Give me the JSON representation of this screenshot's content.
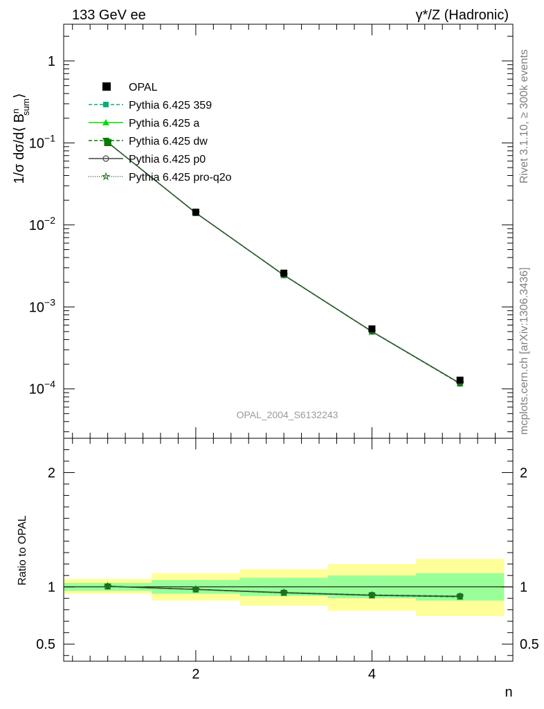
{
  "header": {
    "left": "133 GeV ee",
    "right": "γ*/Z (Hadronic)"
  },
  "side_labels": {
    "rivet": "Rivet 3.1.10, ≥ 300k events",
    "mcplots": "mcplots.cern.ch [arXiv:1306.3436]"
  },
  "watermark": "OPAL_2004_S6132243",
  "colors": {
    "data": "#000000",
    "yellow_band": "#ffff99",
    "green_band": "#99ff99",
    "p359": "#00b07a",
    "pa": "#00dd00",
    "pdw": "#008000",
    "pp0": "#444444",
    "pq2o": "#207020"
  },
  "chart_data": [
    {
      "type": "line",
      "panel": "main",
      "ylabel_main": "1/σ dσ/d⟨ B",
      "ylabel_sup": "n",
      "ylabel_sub": "sum",
      "ylabel_close": "⟩",
      "xlim": [
        0.5,
        5.6
      ],
      "ylim": [
        2.5e-05,
        2.8
      ],
      "yscale": "log",
      "y_ticks": [
        {
          "value": 1,
          "base": "1",
          "exp": ""
        },
        {
          "value": 0.1,
          "base": "10",
          "exp": "−1"
        },
        {
          "value": 0.01,
          "base": "10",
          "exp": "−2"
        },
        {
          "value": 0.001,
          "base": "10",
          "exp": "−3"
        },
        {
          "value": 0.0001,
          "base": "10",
          "exp": "−4"
        }
      ],
      "x": [
        1,
        2,
        3,
        4,
        5
      ],
      "data": {
        "name": "OPAL",
        "values": [
          0.101,
          0.0143,
          0.00258,
          0.00054,
          0.000128
        ]
      },
      "series": [
        {
          "name": "Pythia 6.425 359",
          "values": [
            0.1015,
            0.014,
            0.00245,
            0.000502,
            0.000117
          ],
          "color": "#00b07a",
          "marker": "square",
          "dash": "5,3"
        },
        {
          "name": "Pythia 6.425 a",
          "values": [
            0.1015,
            0.014,
            0.00245,
            0.0005,
            0.000117
          ],
          "color": "#00dd00",
          "marker": "triangle-up",
          "dash": ""
        },
        {
          "name": "Pythia 6.425 dw",
          "values": [
            0.1015,
            0.014,
            0.00244,
            0.0005,
            0.000116
          ],
          "color": "#008000",
          "marker": "triangle-down",
          "dash": "5,3"
        },
        {
          "name": "Pythia 6.425 p0",
          "values": [
            0.1015,
            0.014,
            0.00245,
            0.000501,
            0.000117
          ],
          "color": "#444444",
          "marker": "circle",
          "dash": ""
        },
        {
          "name": "Pythia 6.425 pro-q2o",
          "values": [
            0.1015,
            0.014,
            0.00245,
            0.0005,
            0.000117
          ],
          "color": "#207020",
          "marker": "star",
          "dash": "1,2"
        }
      ],
      "legend_position": "top-left"
    },
    {
      "type": "line",
      "panel": "ratio",
      "ylabel": "Ratio to OPAL",
      "xlabel": "n",
      "xlim": [
        0.5,
        5.6
      ],
      "ylim": [
        0.35,
        2.3
      ],
      "x_ticks": [
        2,
        4
      ],
      "y_ticks": [
        {
          "value": 2,
          "label": "2"
        },
        {
          "value": 1,
          "label": "1"
        },
        {
          "value": 0.5,
          "label": "0.5"
        }
      ],
      "bins": [
        {
          "xlo": 0.5,
          "xhi": 1.5,
          "yellow": [
            0.94,
            1.07
          ],
          "green": [
            0.965,
            1.035
          ]
        },
        {
          "xlo": 1.5,
          "xhi": 2.5,
          "yellow": [
            0.88,
            1.12
          ],
          "green": [
            0.94,
            1.06
          ]
        },
        {
          "xlo": 2.5,
          "xhi": 3.5,
          "yellow": [
            0.835,
            1.155
          ],
          "green": [
            0.92,
            1.08
          ]
        },
        {
          "xlo": 3.5,
          "xhi": 4.5,
          "yellow": [
            0.79,
            1.2
          ],
          "green": [
            0.9,
            1.1
          ]
        },
        {
          "xlo": 4.5,
          "xhi": 5.5,
          "yellow": [
            0.745,
            1.245
          ],
          "green": [
            0.88,
            1.12
          ]
        }
      ],
      "x": [
        1,
        2,
        3,
        4,
        5
      ],
      "series": [
        {
          "name": "Pythia 6.425 359",
          "values": [
            1.005,
            0.978,
            0.95,
            0.93,
            0.92
          ]
        },
        {
          "name": "Pythia 6.425 a",
          "values": [
            1.005,
            0.978,
            0.948,
            0.926,
            0.915
          ]
        },
        {
          "name": "Pythia 6.425 dw",
          "values": [
            1.005,
            0.978,
            0.948,
            0.926,
            0.913
          ]
        },
        {
          "name": "Pythia 6.425 p0",
          "values": [
            1.005,
            0.978,
            0.95,
            0.928,
            0.918
          ]
        },
        {
          "name": "Pythia 6.425 pro-q2o",
          "values": [
            1.005,
            0.978,
            0.948,
            0.926,
            0.915
          ]
        }
      ]
    }
  ]
}
